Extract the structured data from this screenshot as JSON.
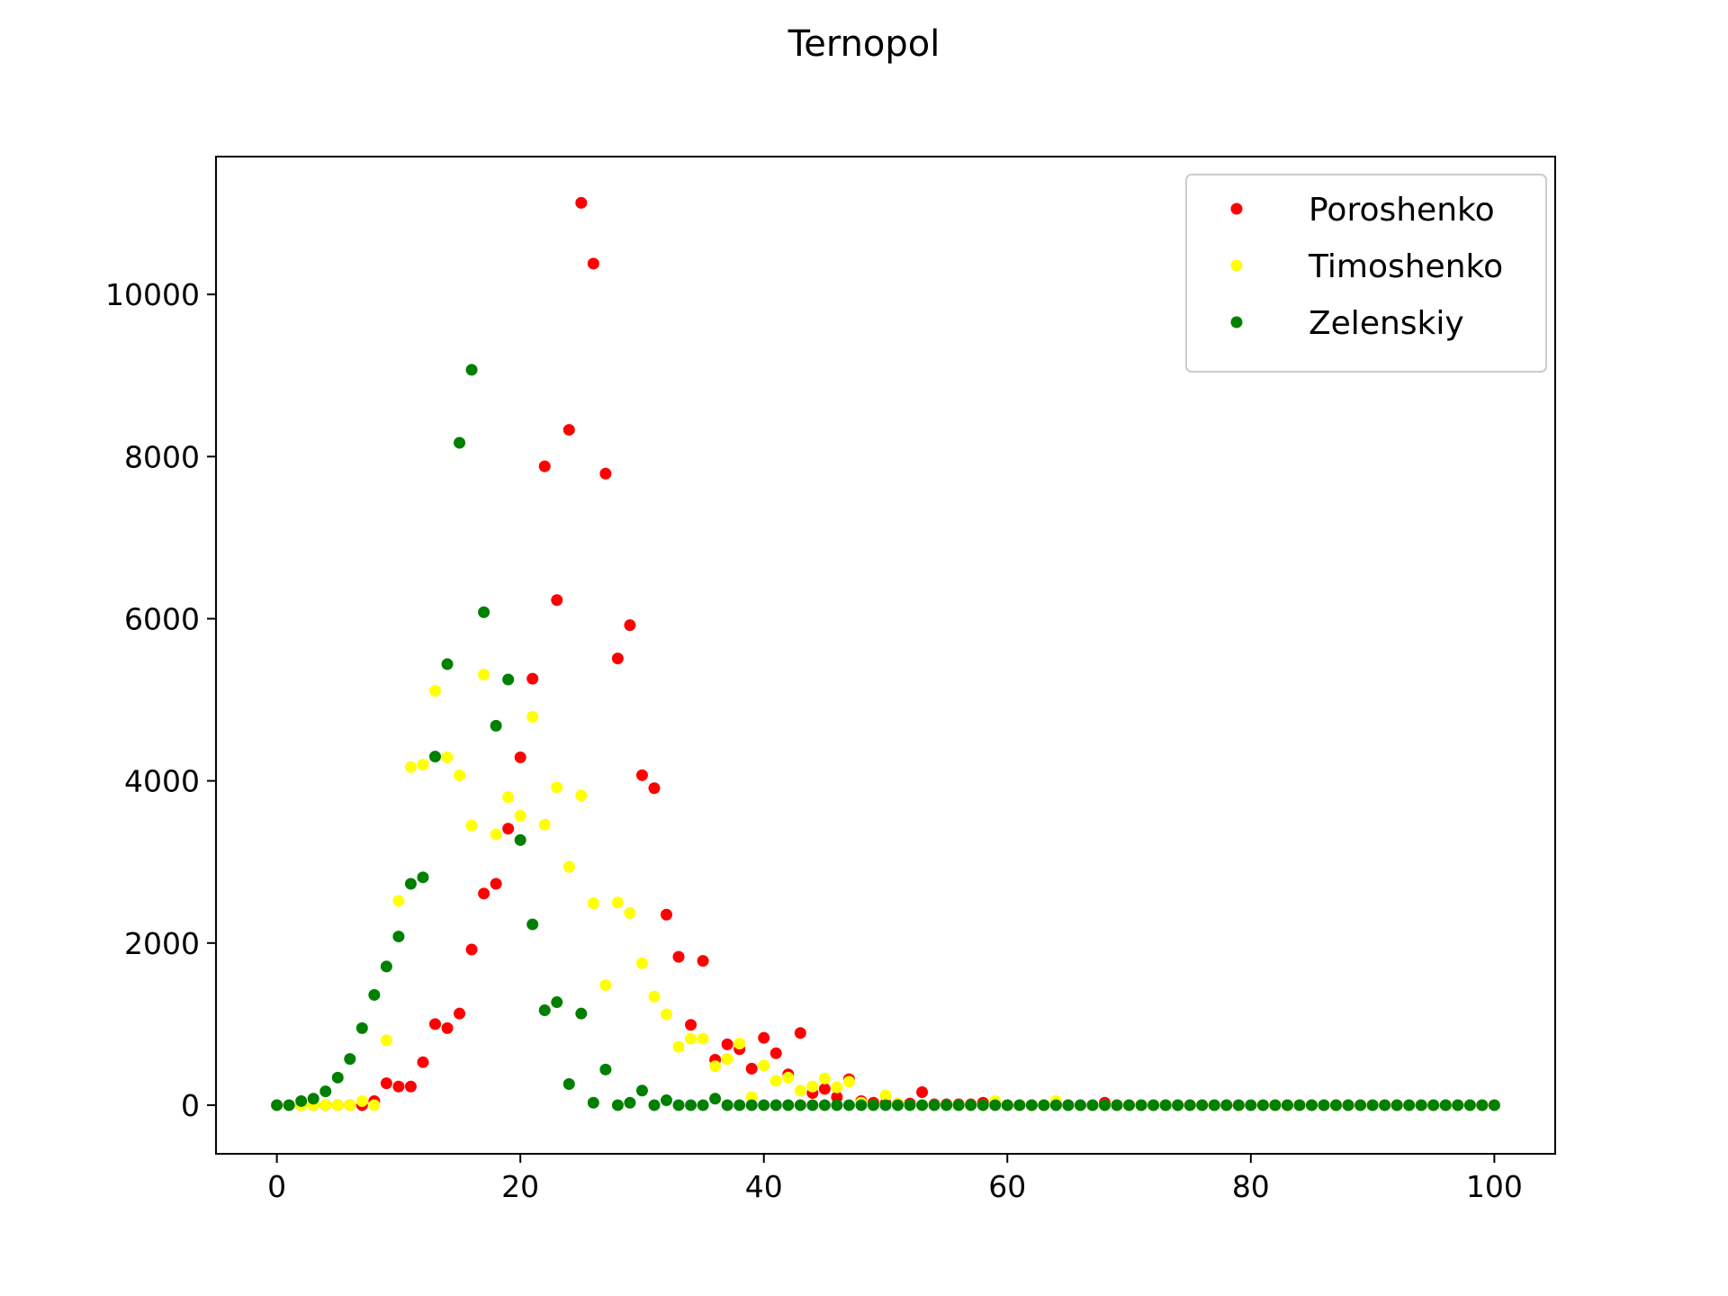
{
  "chart_data": {
    "type": "scatter",
    "title": "Ternopol",
    "xlabel": "",
    "ylabel": "",
    "xlim": [
      -5,
      105
    ],
    "ylim": [
      -600,
      11700
    ],
    "x_ticks": [
      0,
      20,
      40,
      60,
      80,
      100
    ],
    "y_ticks": [
      0,
      2000,
      4000,
      6000,
      8000,
      10000
    ],
    "grid": false,
    "legend_position": "top-right",
    "x_start": 0,
    "x_step": 1,
    "series": [
      {
        "name": "Poroshenko",
        "color": "#ff0000",
        "values": [
          0,
          0,
          0,
          0,
          0,
          0,
          0,
          0,
          50,
          270,
          230,
          230,
          530,
          1000,
          950,
          1130,
          1920,
          2610,
          2730,
          3410,
          4290,
          5260,
          7880,
          6230,
          8330,
          11130,
          10380,
          7790,
          5510,
          5920,
          4070,
          3910,
          2350,
          1830,
          990,
          1780,
          560,
          750,
          690,
          450,
          830,
          640,
          380,
          890,
          150,
          200,
          100,
          320,
          50,
          30,
          20,
          20,
          20,
          160,
          10,
          10,
          10,
          10,
          30,
          30,
          0,
          0,
          0,
          0,
          10,
          0,
          0,
          0,
          30,
          0,
          0,
          0,
          0,
          0,
          0,
          0,
          0,
          0,
          0,
          0,
          0,
          0,
          0,
          0,
          0,
          0,
          0,
          0,
          0,
          0,
          0,
          0,
          0,
          0,
          0,
          0,
          0,
          0,
          0,
          0,
          0
        ]
      },
      {
        "name": "Timoshenko",
        "color": "#ffff00",
        "values": [
          0,
          0,
          0,
          0,
          0,
          0,
          0,
          50,
          0,
          800,
          2520,
          4170,
          4200,
          5110,
          4290,
          4070,
          3450,
          5310,
          3340,
          3800,
          3570,
          4790,
          3460,
          3920,
          2940,
          3820,
          2490,
          1480,
          2500,
          2370,
          1750,
          1340,
          1120,
          720,
          820,
          820,
          480,
          570,
          760,
          100,
          490,
          300,
          340,
          180,
          230,
          330,
          220,
          290,
          30,
          0,
          120,
          20,
          0,
          0,
          0,
          0,
          0,
          0,
          0,
          50,
          0,
          0,
          0,
          0,
          50,
          0,
          0,
          0,
          0,
          0,
          0,
          0,
          0,
          0,
          0,
          0,
          0,
          0,
          0,
          0,
          0,
          0,
          0,
          0,
          0,
          0,
          0,
          0,
          0,
          0,
          0,
          0,
          0,
          0,
          0,
          0,
          0,
          0,
          0,
          0,
          0
        ]
      },
      {
        "name": "Zelenskiy",
        "color": "#008000",
        "values": [
          0,
          0,
          50,
          80,
          170,
          340,
          570,
          950,
          1360,
          1710,
          2080,
          2730,
          2810,
          4300,
          5440,
          8170,
          9070,
          6080,
          4680,
          5250,
          3270,
          2230,
          1170,
          1270,
          260,
          1130,
          30,
          440,
          0,
          30,
          180,
          0,
          60,
          0,
          0,
          0,
          80,
          0,
          0,
          0,
          0,
          0,
          0,
          0,
          0,
          0,
          0,
          0,
          0,
          0,
          0,
          0,
          0,
          0,
          0,
          0,
          0,
          0,
          0,
          0,
          0,
          0,
          0,
          0,
          0,
          0,
          0,
          0,
          0,
          0,
          0,
          0,
          0,
          0,
          0,
          0,
          0,
          0,
          0,
          0,
          0,
          0,
          0,
          0,
          0,
          0,
          0,
          0,
          0,
          0,
          0,
          0,
          0,
          0,
          0,
          0,
          0,
          0,
          0,
          0,
          0
        ]
      }
    ]
  }
}
